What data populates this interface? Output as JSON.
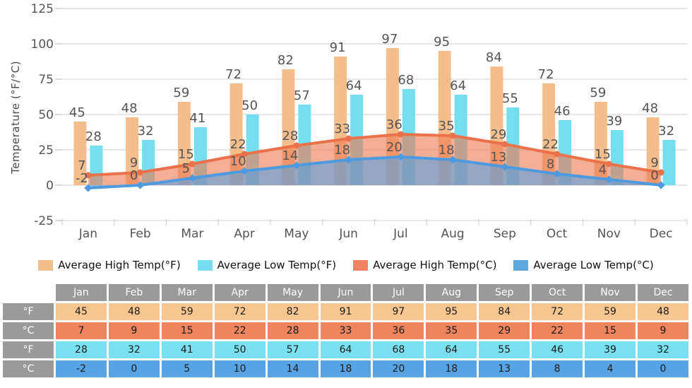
{
  "chart_data": {
    "type": "bar+area",
    "categories": [
      "Jan",
      "Feb",
      "Mar",
      "Apr",
      "May",
      "Jun",
      "Jul",
      "Aug",
      "Sep",
      "Oct",
      "Nov",
      "Dec"
    ],
    "series": [
      {
        "name": "Average High Temp(°F)",
        "type": "bar",
        "color": "#F4BE8C",
        "swatch": "#F4BE8C",
        "values": [
          45,
          48,
          59,
          72,
          82,
          91,
          97,
          95,
          84,
          72,
          59,
          48
        ]
      },
      {
        "name": "Average Low Temp(°F)",
        "type": "bar",
        "color": "#74DEF0",
        "swatch": "#74DEF0",
        "values": [
          28,
          32,
          41,
          50,
          57,
          64,
          68,
          64,
          55,
          46,
          39,
          32
        ]
      },
      {
        "name": "Average High Temp(°C)",
        "type": "area",
        "color": "#EE7C55",
        "stroke": "#EA714A",
        "swatch": "#F08263",
        "values": [
          7,
          9,
          15,
          22,
          28,
          33,
          36,
          35,
          29,
          22,
          15,
          9
        ]
      },
      {
        "name": "Average Low Temp(°C)",
        "type": "area",
        "color": "#5B9FDD",
        "stroke": "#4E9AE0",
        "swatch": "#5FA8DF",
        "values": [
          -2,
          0,
          5,
          10,
          14,
          18,
          20,
          18,
          13,
          8,
          4,
          0
        ]
      }
    ],
    "ylabel": "Temperature (°F/°C)",
    "yticks": [
      -25,
      0,
      25,
      50,
      75,
      100,
      125
    ],
    "ylim": [
      -25,
      125
    ],
    "grid": true,
    "legend_position": "bottom",
    "text_color": "#555555",
    "grid_color": "#cccccc"
  },
  "table": {
    "columns": [
      "Jan",
      "Feb",
      "Mar",
      "Apr",
      "May",
      "Jun",
      "Jul",
      "Aug",
      "Sep",
      "Oct",
      "Nov",
      "Dec"
    ],
    "header_bg": "#9A9A9A",
    "rows": [
      {
        "label": "°F",
        "bg": "#F8C791",
        "values": [
          45,
          48,
          59,
          72,
          82,
          91,
          97,
          95,
          84,
          72,
          59,
          48
        ]
      },
      {
        "label": "°C",
        "bg": "#F0845E",
        "values": [
          7,
          9,
          15,
          22,
          28,
          33,
          36,
          35,
          29,
          22,
          15,
          9
        ]
      },
      {
        "label": "°F",
        "bg": "#79E0F1",
        "values": [
          28,
          32,
          41,
          50,
          57,
          64,
          68,
          64,
          55,
          46,
          39,
          32
        ]
      },
      {
        "label": "°C",
        "bg": "#58A3E4",
        "values": [
          -2,
          0,
          5,
          10,
          14,
          18,
          20,
          18,
          13,
          8,
          4,
          0
        ]
      }
    ]
  }
}
